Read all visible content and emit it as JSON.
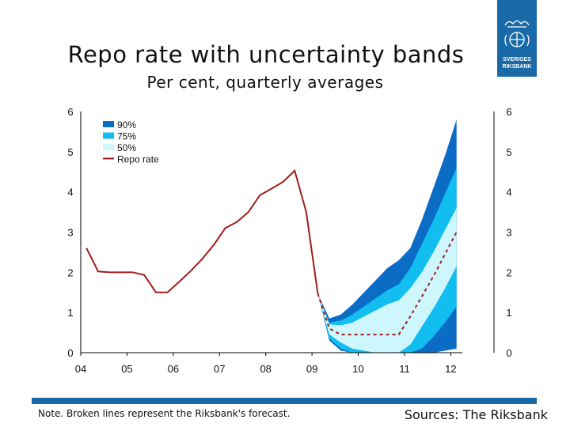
{
  "header": {
    "title": "Repo rate with uncertainty bands",
    "subtitle": "Per cent, quarterly averages"
  },
  "logo": {
    "line1": "SVERIGES",
    "line2": "RIKSBANK",
    "icon": "riksbank-crest-icon"
  },
  "footer": {
    "note": "Note. Broken lines represent the Riksbank's forecast.",
    "sources": "Sources: The Riksbank"
  },
  "colors": {
    "band90": "#0b6cc6",
    "band75": "#12bdef",
    "band50": "#cdf7fc",
    "repo": "#a01c1c",
    "brand": "#1a6aa8"
  },
  "chart_data": {
    "type": "area",
    "x_ticks": [
      "04",
      "05",
      "06",
      "07",
      "08",
      "09",
      "10",
      "11",
      "12"
    ],
    "y_ticks": [
      0,
      1,
      2,
      3,
      4,
      5,
      6
    ],
    "xlim": [
      2004.0,
      2012.25
    ],
    "ylim": [
      0,
      6
    ],
    "grid": false,
    "legend_position": "top-left",
    "legend": [
      "90%",
      "75%",
      "50%",
      "Repo rate"
    ],
    "series": [
      {
        "name": "Repo rate",
        "style": "solid",
        "x": [
          2004.125,
          2004.375,
          2004.625,
          2004.875,
          2005.125,
          2005.375,
          2005.625,
          2005.875,
          2006.125,
          2006.375,
          2006.625,
          2006.875,
          2007.125,
          2007.375,
          2007.625,
          2007.875,
          2008.125,
          2008.375,
          2008.625,
          2008.875,
          2009.125
        ],
        "y": [
          2.6,
          2.02,
          2.0,
          2.0,
          2.0,
          1.93,
          1.5,
          1.5,
          1.76,
          2.03,
          2.33,
          2.68,
          3.1,
          3.25,
          3.5,
          3.92,
          4.08,
          4.25,
          4.53,
          3.5,
          1.47
        ]
      },
      {
        "name": "Repo rate forecast",
        "style": "dashed",
        "x": [
          2009.125,
          2009.375,
          2009.625,
          2009.875,
          2010.125,
          2010.375,
          2010.625,
          2010.875,
          2011.125,
          2011.375,
          2011.625,
          2011.875,
          2012.125
        ],
        "y": [
          1.47,
          0.6,
          0.45,
          0.45,
          0.45,
          0.45,
          0.45,
          0.45,
          0.9,
          1.4,
          1.9,
          2.45,
          3.0
        ]
      }
    ],
    "bands": {
      "x": [
        2009.125,
        2009.375,
        2009.625,
        2009.875,
        2010.125,
        2010.375,
        2010.625,
        2010.875,
        2011.125,
        2011.375,
        2011.625,
        2011.875,
        2012.125
      ],
      "p90": {
        "upper": [
          1.47,
          0.85,
          0.95,
          1.2,
          1.5,
          1.8,
          2.1,
          2.3,
          2.6,
          3.3,
          4.1,
          4.9,
          5.8
        ],
        "lower": [
          1.47,
          0.3,
          0.05,
          0.0,
          0.0,
          0.0,
          0.0,
          0.0,
          0.0,
          0.0,
          0.0,
          0.05,
          0.1
        ]
      },
      "p75": {
        "upper": [
          1.47,
          0.75,
          0.8,
          0.95,
          1.15,
          1.35,
          1.55,
          1.7,
          2.1,
          2.7,
          3.3,
          3.95,
          4.6
        ]
      },
      "p50": {
        "upper": [
          1.47,
          0.7,
          0.68,
          0.75,
          0.9,
          1.05,
          1.2,
          1.3,
          1.6,
          2.0,
          2.5,
          3.05,
          3.6
        ],
        "lower": [
          1.47,
          0.45,
          0.25,
          0.1,
          0.05,
          0.0,
          0.0,
          0.0,
          0.2,
          0.65,
          1.1,
          1.6,
          2.15
        ]
      },
      "p75_lower": [
        1.47,
        0.35,
        0.1,
        0.0,
        0.0,
        0.0,
        0.0,
        0.0,
        0.0,
        0.1,
        0.4,
        0.75,
        1.15
      ]
    }
  }
}
